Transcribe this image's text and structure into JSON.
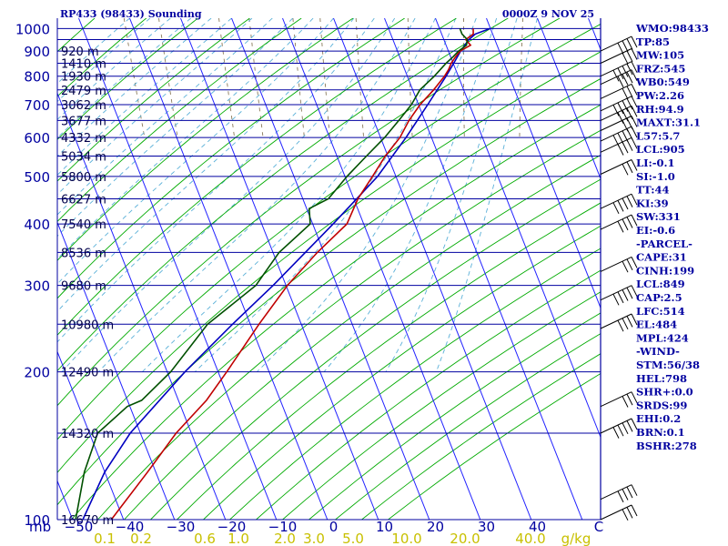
{
  "colors": {
    "frame": "#0000a0",
    "isotherm": "#2222ff",
    "dry_adiabat": "#00aa00",
    "moist_adiabat": "#5ab0d8",
    "mixing_ratio": "#8a7a5a",
    "temperature": "#c00000",
    "dewpoint": "#005000",
    "parcel": "#0000c0",
    "wind": "#000000",
    "mixing_label": "#c8c000"
  },
  "chart_data": {
    "type": "skew-t-log-p",
    "title": "RP433 (98433) Sounding",
    "time_label": "0000Z  9 NOV 25",
    "pressure_axis_unit": "mb",
    "pressure_labels": [
      100,
      200,
      300,
      400,
      500,
      600,
      700,
      800,
      900,
      1000
    ],
    "temperature_axis_unit": "C",
    "temperature_labels": [
      -50,
      -40,
      -30,
      -20,
      -10,
      0,
      10,
      20,
      30,
      40
    ],
    "mixing_ratio_unit": "g/kg",
    "mixing_ratio_labels": [
      "0.1",
      "0.2",
      "0.6",
      "1.0",
      "2.0",
      "3.0",
      "5.0",
      "10.0",
      "20.0",
      "40.0"
    ],
    "mixing_ratio_values": [
      0.1,
      0.2,
      0.6,
      1.0,
      2.0,
      3.0,
      5.0,
      10.0,
      20.0,
      40.0
    ],
    "height_levels": [
      {
        "p": 100,
        "label": "16670 m"
      },
      {
        "p": 150,
        "label": "14320 m"
      },
      {
        "p": 200,
        "label": "12490 m"
      },
      {
        "p": 250,
        "label": "10980 m"
      },
      {
        "p": 300,
        "label": "9680 m"
      },
      {
        "p": 350,
        "label": "8536 m"
      },
      {
        "p": 400,
        "label": "7540 m"
      },
      {
        "p": 450,
        "label": "6627 m"
      },
      {
        "p": 500,
        "label": "5800 m"
      },
      {
        "p": 550,
        "label": "5034 m"
      },
      {
        "p": 600,
        "label": "4332 m"
      },
      {
        "p": 650,
        "label": "3677 m"
      },
      {
        "p": 700,
        "label": "3062 m"
      },
      {
        "p": 750,
        "label": "2479 m"
      },
      {
        "p": 800,
        "label": "1930 m"
      },
      {
        "p": 850,
        "label": "1410 m"
      },
      {
        "p": 900,
        "label": "920 m"
      }
    ],
    "temperature_profile": [
      {
        "p": 1000,
        "t": 26.6
      },
      {
        "p": 975,
        "t": 26.2
      },
      {
        "p": 950,
        "t": 24.3
      },
      {
        "p": 925,
        "t": 24.8
      },
      {
        "p": 900,
        "t": 22.3
      },
      {
        "p": 875,
        "t": 20.9
      },
      {
        "p": 850,
        "t": 19.6
      },
      {
        "p": 825,
        "t": 18.6
      },
      {
        "p": 800,
        "t": 17.3
      },
      {
        "p": 750,
        "t": 14.1
      },
      {
        "p": 700,
        "t": 10.3
      },
      {
        "p": 650,
        "t": 6.9
      },
      {
        "p": 600,
        "t": 3.8
      },
      {
        "p": 550,
        "t": -0.5
      },
      {
        "p": 500,
        "t": -4.6
      },
      {
        "p": 450,
        "t": -9.2
      },
      {
        "p": 400,
        "t": -13.3
      },
      {
        "p": 350,
        "t": -21.3
      },
      {
        "p": 300,
        "t": -29.7
      },
      {
        "p": 250,
        "t": -38.3
      },
      {
        "p": 200,
        "t": -48.3
      },
      {
        "p": 175,
        "t": -54.5
      },
      {
        "p": 150,
        "t": -63.0
      },
      {
        "p": 125,
        "t": -71.6
      },
      {
        "p": 100,
        "t": -82.4
      }
    ],
    "dewpoint_profile": [
      {
        "p": 1000,
        "t": 24.0
      },
      {
        "p": 975,
        "t": 24.0
      },
      {
        "p": 950,
        "t": 24.6
      },
      {
        "p": 925,
        "t": 24.0
      },
      {
        "p": 900,
        "t": 22.0
      },
      {
        "p": 875,
        "t": 20.4
      },
      {
        "p": 850,
        "t": 18.6
      },
      {
        "p": 800,
        "t": 15.3
      },
      {
        "p": 750,
        "t": 11.4
      },
      {
        "p": 700,
        "t": 8.6
      },
      {
        "p": 650,
        "t": 4.9
      },
      {
        "p": 600,
        "t": 0.8
      },
      {
        "p": 550,
        "t": -4.2
      },
      {
        "p": 500,
        "t": -9.6
      },
      {
        "p": 450,
        "t": -15.0
      },
      {
        "p": 430,
        "t": -19.5
      },
      {
        "p": 400,
        "t": -20.5
      },
      {
        "p": 350,
        "t": -28.8
      },
      {
        "p": 300,
        "t": -35.9
      },
      {
        "p": 250,
        "t": -48.4
      },
      {
        "p": 200,
        "t": -59.3
      },
      {
        "p": 175,
        "t": -67.2
      },
      {
        "p": 170,
        "t": -70.5
      },
      {
        "p": 150,
        "t": -78.4
      },
      {
        "p": 125,
        "t": -84.0
      },
      {
        "p": 100,
        "t": -89.4
      }
    ],
    "parcel_profile": [
      {
        "p": 1000,
        "t": 29.9
      },
      {
        "p": 975,
        "t": 26.6
      },
      {
        "p": 950,
        "t": 24.9
      },
      {
        "p": 900,
        "t": 22.4
      },
      {
        "p": 850,
        "t": 20.1
      },
      {
        "p": 800,
        "t": 17.6
      },
      {
        "p": 700,
        "t": 11.8
      },
      {
        "p": 600,
        "t": 5.0
      },
      {
        "p": 500,
        "t": -3.6
      },
      {
        "p": 400,
        "t": -16.0
      },
      {
        "p": 300,
        "t": -32.5
      },
      {
        "p": 250,
        "t": -43.5
      },
      {
        "p": 200,
        "t": -56.5
      },
      {
        "p": 150,
        "t": -72.0
      },
      {
        "p": 125,
        "t": -80.0
      },
      {
        "p": 100,
        "t": -88.0
      }
    ],
    "wind_barb_pressures": [
      100,
      110,
      150,
      170,
      245,
      280,
      320,
      390,
      430,
      505,
      560,
      590,
      620,
      650,
      680,
      720,
      770,
      800,
      850,
      900
    ],
    "indices": [
      "WMO:98433",
      "TP:85",
      "MW:105",
      "FRZ:545",
      "WB0:549",
      "PW:2.26",
      "RH:94.9",
      "MAXT:31.1",
      "L57:5.7",
      "LCL:905",
      "LI:-0.1",
      "SI:-1.0",
      "TT:44",
      "KI:39",
      "SW:331",
      "EI:-0.6",
      "-PARCEL-",
      "CAPE:31",
      "CINH:199",
      "LCL:849",
      "CAP:2.5",
      "LFC:514",
      "EL:484",
      "MPL:424",
      "-WIND-",
      "STM:56/38",
      "HEL:798",
      "SHR+:0.0",
      "SRDS:99",
      "EHI:0.2",
      "BRN:0.1",
      "BSHR:278"
    ]
  }
}
